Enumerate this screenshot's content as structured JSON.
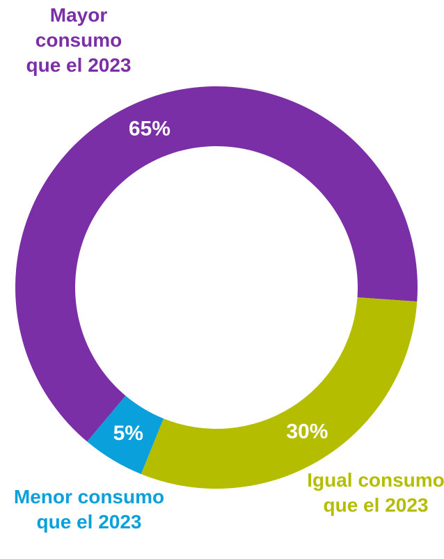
{
  "chart_data": {
    "type": "donut",
    "categories": [
      "Mayor consumo que el 2023",
      "Igual consumo que el 2023",
      "Menor consumo que el 2023"
    ],
    "values": [
      65,
      30,
      5
    ],
    "value_labels": [
      "65%",
      "30%",
      "5%"
    ],
    "colors": [
      "#7b2fa6",
      "#b5bd00",
      "#0aa0dc"
    ]
  }
}
